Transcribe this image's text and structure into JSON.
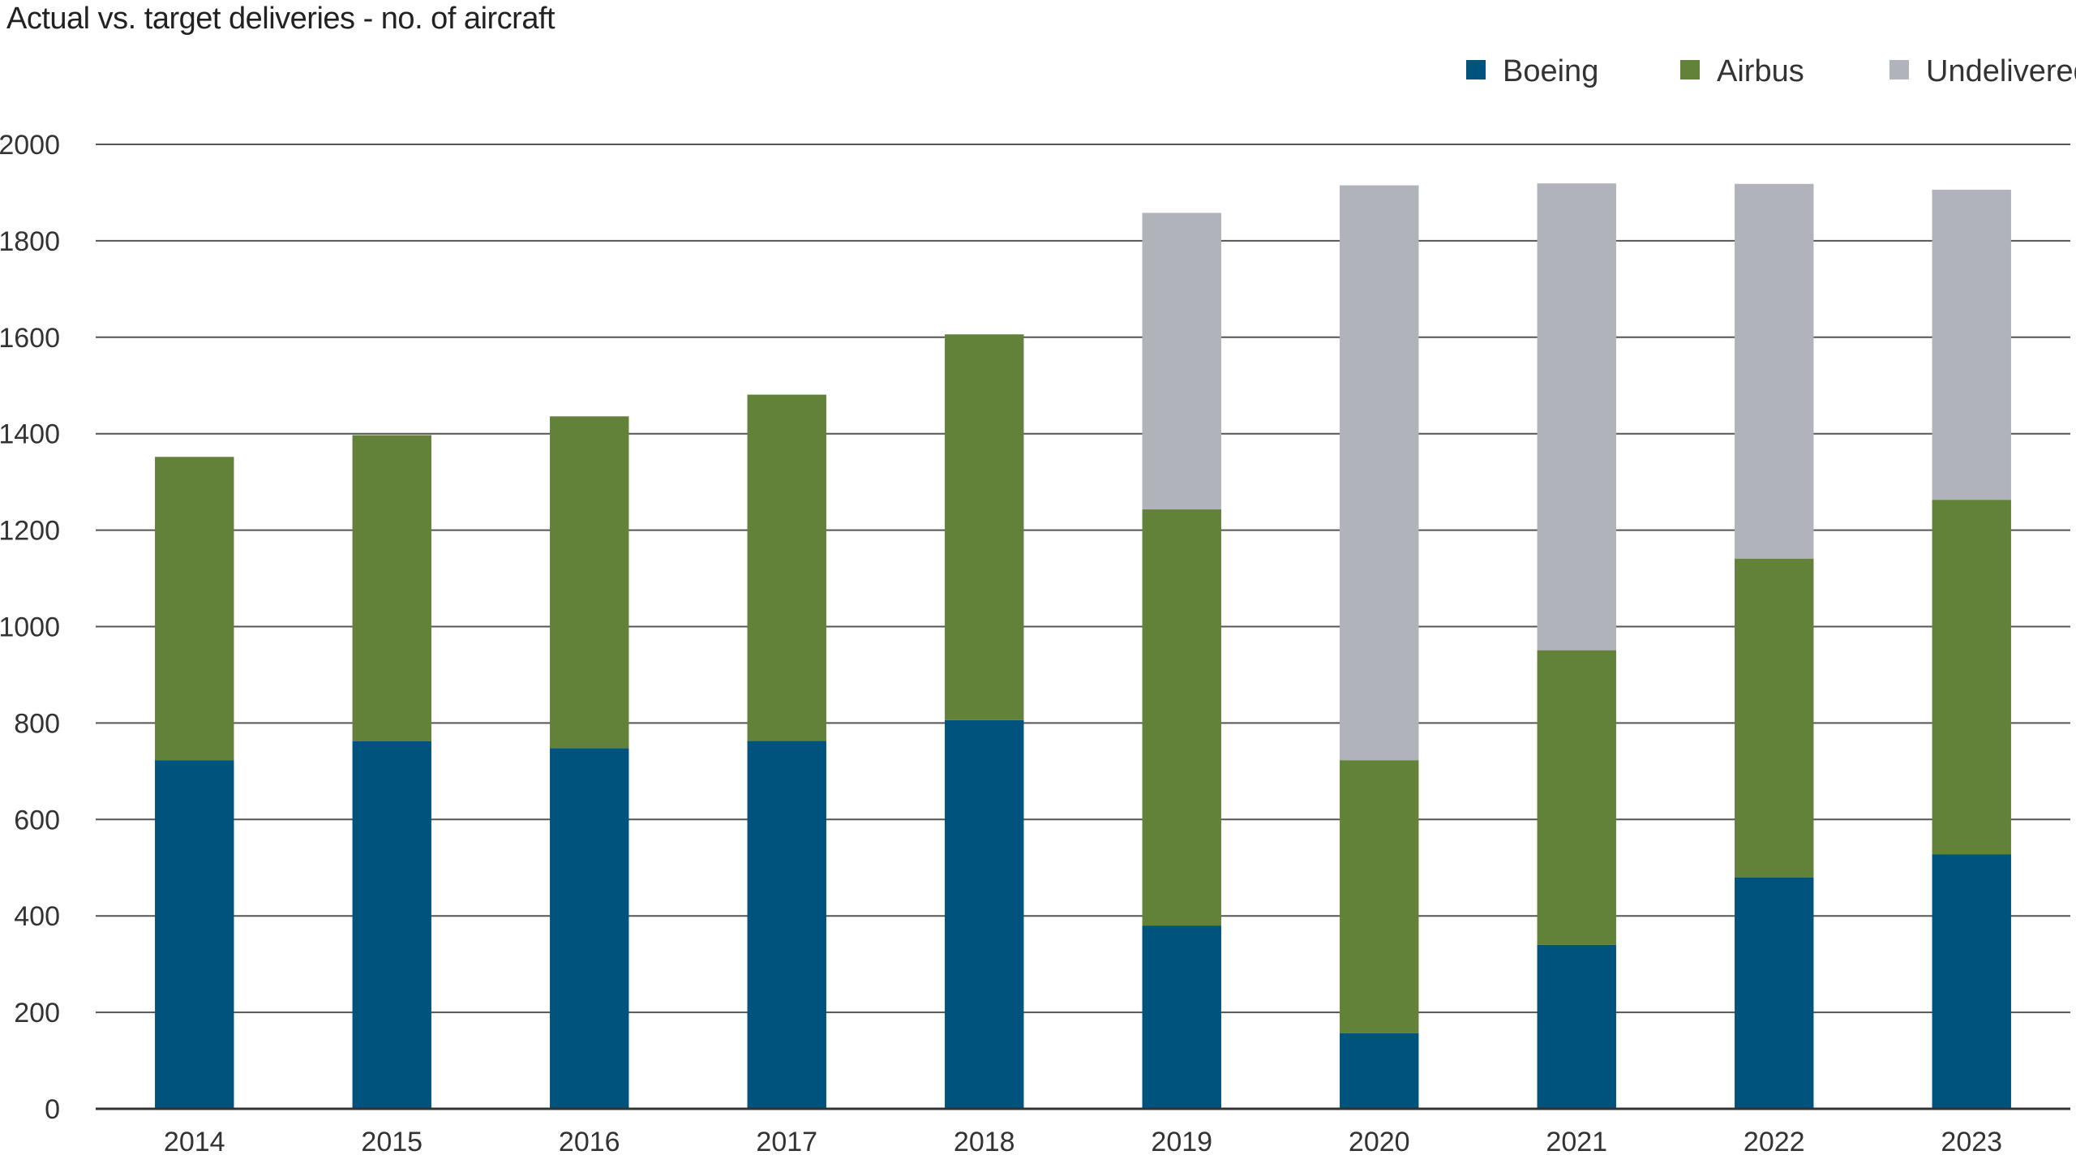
{
  "colors": {
    "boeing": "#00537d",
    "airbus": "#62823a",
    "undelivered": "#b0b3ba",
    "grid": "#555555",
    "axis": "#333333"
  },
  "chart_data": {
    "type": "bar",
    "stacked": true,
    "title": "Actual vs. target deliveries - no. of aircraft",
    "xlabel": "",
    "ylabel": "",
    "ylim": [
      0,
      2000
    ],
    "yticks": [
      0,
      200,
      400,
      600,
      800,
      1000,
      1200,
      1400,
      1600,
      1800,
      2000
    ],
    "grid": true,
    "legend_position": "top-right",
    "categories": [
      "2014",
      "2015",
      "2016",
      "2017",
      "2018",
      "2019",
      "2020",
      "2021",
      "2022",
      "2023"
    ],
    "series": [
      {
        "name": "Boeing",
        "color": "#00537d",
        "values": [
          723,
          762,
          748,
          763,
          806,
          380,
          157,
          340,
          480,
          528
        ]
      },
      {
        "name": "Airbus",
        "color": "#62823a",
        "values": [
          629,
          635,
          688,
          718,
          800,
          863,
          566,
          611,
          661,
          735
        ]
      },
      {
        "name": "Undelivered",
        "color": "#b0b3ba",
        "values": [
          0,
          0,
          0,
          0,
          0,
          615,
          1192,
          968,
          777,
          643
        ]
      }
    ]
  }
}
